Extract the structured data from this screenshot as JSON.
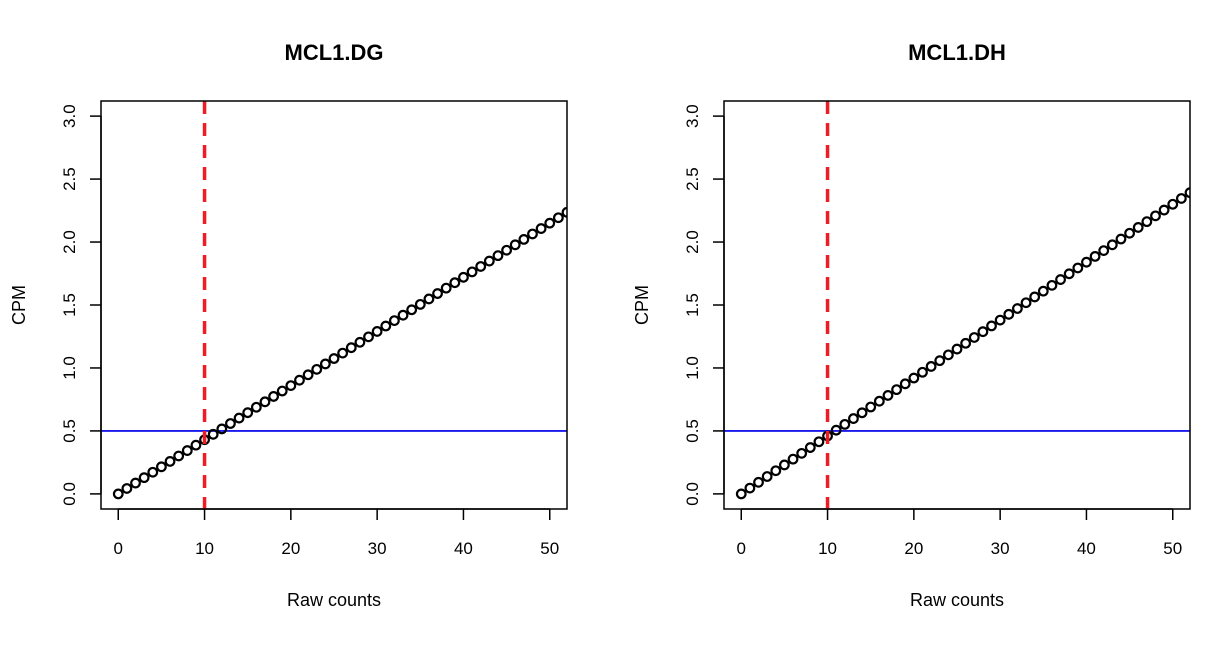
{
  "chart_data": [
    {
      "type": "scatter",
      "title": "MCL1.DG",
      "xlabel": "Raw counts",
      "ylabel": "CPM",
      "xlim": [
        -2,
        52
      ],
      "ylim": [
        -0.12,
        3.12
      ],
      "xticks": [
        "0",
        "10",
        "20",
        "30",
        "40",
        "50"
      ],
      "yticks": [
        "0.0",
        "0.5",
        "1.0",
        "1.5",
        "2.0",
        "2.5",
        "3.0"
      ],
      "series": [
        {
          "x": [
            0,
            1,
            2,
            3,
            4,
            5,
            6,
            7,
            8,
            9,
            10,
            11,
            12,
            13,
            14,
            15,
            16,
            17,
            18,
            19,
            20,
            21,
            22,
            23,
            24,
            25,
            26,
            27,
            28,
            29,
            30,
            31,
            32,
            33,
            34,
            35,
            36,
            37,
            38,
            39,
            40,
            41,
            42,
            43,
            44,
            45,
            46,
            47,
            48,
            49,
            50,
            51,
            52
          ],
          "y": [
            0.0,
            0.043,
            0.086,
            0.129,
            0.172,
            0.215,
            0.258,
            0.301,
            0.344,
            0.387,
            0.43,
            0.473,
            0.516,
            0.559,
            0.602,
            0.645,
            0.688,
            0.731,
            0.774,
            0.817,
            0.86,
            0.903,
            0.946,
            0.989,
            1.032,
            1.075,
            1.118,
            1.161,
            1.204,
            1.247,
            1.29,
            1.333,
            1.376,
            1.419,
            1.462,
            1.505,
            1.548,
            1.591,
            1.634,
            1.677,
            1.72,
            1.763,
            1.806,
            1.849,
            1.892,
            1.935,
            1.978,
            2.021,
            2.064,
            2.107,
            2.15,
            2.193,
            2.236
          ]
        }
      ],
      "hline": 0.5,
      "vline": 10,
      "hline_color": "#1a1aee",
      "vline_color": "#ee1c25"
    },
    {
      "type": "scatter",
      "title": "MCL1.DH",
      "xlabel": "Raw counts",
      "ylabel": "CPM",
      "xlim": [
        -2,
        52
      ],
      "ylim": [
        -0.12,
        3.12
      ],
      "xticks": [
        "0",
        "10",
        "20",
        "30",
        "40",
        "50"
      ],
      "yticks": [
        "0.0",
        "0.5",
        "1.0",
        "1.5",
        "2.0",
        "2.5",
        "3.0"
      ],
      "series": [
        {
          "x": [
            0,
            1,
            2,
            3,
            4,
            5,
            6,
            7,
            8,
            9,
            10,
            11,
            12,
            13,
            14,
            15,
            16,
            17,
            18,
            19,
            20,
            21,
            22,
            23,
            24,
            25,
            26,
            27,
            28,
            29,
            30,
            31,
            32,
            33,
            34,
            35,
            36,
            37,
            38,
            39,
            40,
            41,
            42,
            43,
            44,
            45,
            46,
            47,
            48,
            49,
            50,
            51,
            52
          ],
          "y": [
            0.0,
            0.046,
            0.092,
            0.138,
            0.184,
            0.23,
            0.276,
            0.322,
            0.368,
            0.414,
            0.46,
            0.506,
            0.552,
            0.598,
            0.644,
            0.69,
            0.736,
            0.782,
            0.828,
            0.874,
            0.92,
            0.966,
            1.012,
            1.058,
            1.104,
            1.15,
            1.196,
            1.242,
            1.288,
            1.334,
            1.38,
            1.426,
            1.472,
            1.518,
            1.564,
            1.61,
            1.656,
            1.702,
            1.748,
            1.794,
            1.84,
            1.886,
            1.932,
            1.978,
            2.024,
            2.07,
            2.116,
            2.162,
            2.208,
            2.254,
            2.3,
            2.346,
            2.392
          ]
        }
      ],
      "hline": 0.5,
      "vline": 10,
      "hline_color": "#1a1aee",
      "vline_color": "#ee1c25"
    }
  ]
}
